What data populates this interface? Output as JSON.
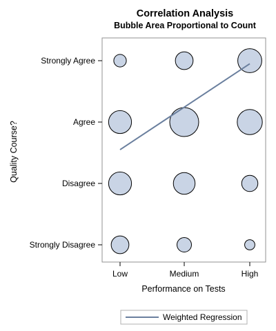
{
  "chart_data": {
    "type": "scatter",
    "title": "Correlation Analysis",
    "subtitle": "Bubble Area Proportional to Count",
    "xlabel": "Performance on Tests",
    "ylabel": "Quality Course?",
    "x_categories": [
      "Low",
      "Medium",
      "High"
    ],
    "y_categories": [
      "Strongly Disagree",
      "Disagree",
      "Agree",
      "Strongly Agree"
    ],
    "bubbles": [
      {
        "x": "Low",
        "y": "Strongly Agree",
        "count": 3
      },
      {
        "x": "Medium",
        "y": "Strongly Agree",
        "count": 6
      },
      {
        "x": "High",
        "y": "Strongly Agree",
        "count": 11
      },
      {
        "x": "Low",
        "y": "Agree",
        "count": 10
      },
      {
        "x": "Medium",
        "y": "Agree",
        "count": 16
      },
      {
        "x": "High",
        "y": "Agree",
        "count": 12
      },
      {
        "x": "Low",
        "y": "Disagree",
        "count": 10
      },
      {
        "x": "Medium",
        "y": "Disagree",
        "count": 9
      },
      {
        "x": "High",
        "y": "Disagree",
        "count": 5
      },
      {
        "x": "Low",
        "y": "Strongly Disagree",
        "count": 6
      },
      {
        "x": "Medium",
        "y": "Strongly Disagree",
        "count": 4
      },
      {
        "x": "High",
        "y": "Strongly Disagree",
        "count": 2
      }
    ],
    "regression": {
      "name": "Weighted Regression",
      "x": [
        "Low",
        "High"
      ],
      "y": [
        1.55,
        2.95
      ],
      "color": "#6a7f9e"
    },
    "bubble_fill": "#c9d4e5",
    "bubble_stroke": "#000000",
    "grid": false,
    "legend_position": "bottom"
  }
}
